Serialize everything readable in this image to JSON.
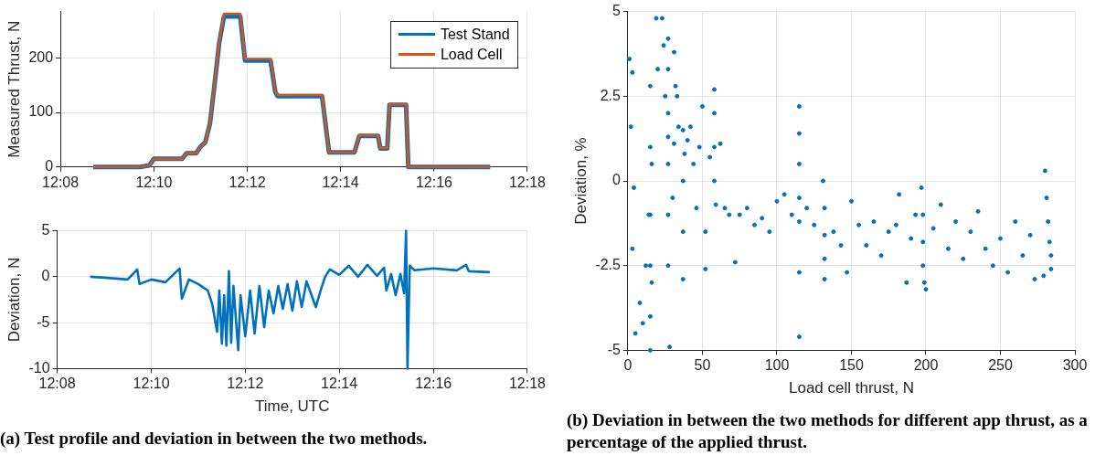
{
  "chart_data": [
    {
      "type": "line",
      "ylabel": "Measured Thrust, N",
      "legend": "top right",
      "grid": true,
      "xlim": [
        12.1333,
        12.3
      ],
      "xticks": [
        {
          "value": 12.1333,
          "label": "12:08"
        },
        {
          "value": 12.1667,
          "label": "12:10"
        },
        {
          "value": 12.2,
          "label": "12:12"
        },
        {
          "value": 12.2333,
          "label": "12:14"
        },
        {
          "value": 12.2667,
          "label": "12:16"
        },
        {
          "value": 12.3,
          "label": "12:18"
        }
      ],
      "ylim": [
        0,
        285
      ],
      "yticks": [
        0,
        100,
        200
      ],
      "x": [
        12.145,
        12.1617,
        12.165,
        12.1667,
        12.1767,
        12.1783,
        12.1817,
        12.1833,
        12.185,
        12.1867,
        12.1883,
        12.19,
        12.1917,
        12.1975,
        12.1992,
        12.2083,
        12.21,
        12.2108,
        12.2267,
        12.2292,
        12.2383,
        12.24,
        12.2467,
        12.2475,
        12.25,
        12.2508,
        12.2567,
        12.2575,
        12.2867
      ],
      "series": [
        {
          "name": "Test Stand",
          "color": "#0072bd",
          "values": [
            0,
            0,
            3,
            15,
            15,
            25,
            25,
            37,
            45,
            80,
            150,
            228,
            276,
            276,
            195,
            195,
            138,
            130,
            130,
            27,
            27,
            57,
            57,
            34,
            34,
            114,
            114,
            0,
            0
          ]
        },
        {
          "name": "Load Cell",
          "color": "#d95319",
          "values": [
            0,
            0,
            3,
            15,
            15,
            25,
            25,
            37,
            45,
            80,
            150,
            230,
            281,
            281,
            198,
            198,
            140,
            132,
            132,
            27,
            27,
            58,
            58,
            35,
            35,
            115,
            115,
            0,
            0
          ]
        }
      ]
    },
    {
      "type": "line",
      "xlabel": "Time, UTC",
      "ylabel": "Deviation, N",
      "grid": true,
      "xlim": [
        12.1333,
        12.3
      ],
      "xticks": [
        {
          "value": 12.1333,
          "label": "12:08"
        },
        {
          "value": 12.1667,
          "label": "12:10"
        },
        {
          "value": 12.2,
          "label": "12:12"
        },
        {
          "value": 12.2333,
          "label": "12:14"
        },
        {
          "value": 12.2667,
          "label": "12:16"
        },
        {
          "value": 12.3,
          "label": "12:18"
        }
      ],
      "ylim": [
        -10,
        5
      ],
      "yticks": [
        -10,
        -5,
        0,
        5
      ],
      "x": [
        12.145,
        12.15,
        12.1583,
        12.1617,
        12.1625,
        12.1667,
        12.1717,
        12.1767,
        12.1775,
        12.18,
        12.1833,
        12.1867,
        12.1883,
        12.19,
        12.1908,
        12.1917,
        12.1925,
        12.1933,
        12.1942,
        12.195,
        12.1958,
        12.1975,
        12.1983,
        12.2,
        12.2017,
        12.2033,
        12.205,
        12.2067,
        12.2083,
        12.21,
        12.2117,
        12.2133,
        12.215,
        12.2167,
        12.2183,
        12.22,
        12.2217,
        12.225,
        12.2267,
        12.2283,
        12.23,
        12.2333,
        12.2367,
        12.24,
        12.2433,
        12.2467,
        12.2492,
        12.25,
        12.2517,
        12.2533,
        12.255,
        12.2563,
        12.257,
        12.2575,
        12.2583,
        12.26,
        12.2667,
        12.275,
        12.2783,
        12.2792,
        12.2867
      ],
      "series": [
        {
          "color": "#0072bd",
          "values": [
            0,
            -0.1,
            -0.3,
            0.8,
            -0.8,
            -0.3,
            -0.6,
            0.9,
            -2.4,
            -0.3,
            -0.8,
            -1.5,
            -3,
            -6,
            -1.5,
            -7.3,
            -2,
            -7.5,
            0.6,
            -7.2,
            -1,
            -8,
            -2,
            -6.5,
            -1.5,
            -6.2,
            -1,
            -5.5,
            -1.5,
            -4,
            -1,
            -3.5,
            -0.8,
            -3.7,
            -0.5,
            -3.3,
            -0.5,
            -3.3,
            -1.5,
            0,
            0.8,
            0.2,
            1.2,
            0,
            1.3,
            0.1,
            1,
            -1.5,
            0.3,
            -2,
            0.3,
            -1.8,
            5,
            -10,
            1.2,
            0.7,
            0.9,
            0.7,
            1.3,
            0.6,
            0.5
          ]
        }
      ],
      "annotations": [
        "(a) Test profile and deviation in between the two methods."
      ]
    },
    {
      "type": "scatter",
      "xlabel": "Load cell thrust, N",
      "ylabel": "Deviation, %",
      "grid": true,
      "marker": "circle",
      "xlim": [
        0,
        300
      ],
      "xticks": [
        0,
        50,
        100,
        150,
        200,
        250,
        300
      ],
      "ylim": [
        -5,
        5
      ],
      "yticks": [
        -5,
        -2.5,
        0,
        2.5,
        5
      ],
      "series": [
        {
          "color": "#0072bd",
          "x": [
            1,
            2,
            3,
            4,
            3,
            5,
            8,
            10,
            12,
            14,
            15,
            15,
            15,
            15,
            15,
            15,
            16,
            16,
            19,
            20,
            23,
            24,
            25,
            27,
            27,
            27,
            27,
            27,
            27,
            28,
            27,
            31,
            32,
            31,
            30,
            33,
            34,
            37,
            37,
            37,
            37,
            38,
            40,
            42,
            44,
            46,
            48,
            50,
            52,
            52,
            55,
            58,
            58,
            58,
            58,
            59,
            62,
            65,
            68,
            72,
            75,
            80,
            85,
            90,
            95,
            100,
            105,
            110,
            115,
            115,
            115,
            115,
            115,
            115,
            115,
            120,
            125,
            131,
            132,
            132,
            132,
            132,
            138,
            143,
            147,
            150,
            155,
            160,
            165,
            170,
            175,
            180,
            182,
            187,
            190,
            193,
            197,
            198,
            198,
            198,
            199,
            200,
            205,
            210,
            215,
            220,
            225,
            230,
            235,
            240,
            245,
            250,
            255,
            260,
            265,
            270,
            273,
            280,
            281,
            282,
            283,
            284,
            284,
            279
          ],
          "values": [
            3.6,
            1.6,
            3.2,
            -0.2,
            -2,
            -4.5,
            -3.6,
            -4.2,
            -2.5,
            -1,
            2.8,
            1,
            -1,
            -2.5,
            -4,
            -5,
            0.5,
            -3,
            4.8,
            3.3,
            4.8,
            4,
            2.5,
            4.2,
            3.3,
            2,
            0.5,
            -1,
            -2.5,
            -4.9,
            1.3,
            3.8,
            2.8,
            1.1,
            -0.5,
            2.5,
            1.6,
            1.5,
            0,
            -1.5,
            -2.9,
            0.8,
            1.2,
            1.6,
            0.5,
            -0.8,
            1,
            2.2,
            -1.5,
            -2.6,
            0.7,
            2.7,
            2,
            1,
            0,
            -0.7,
            1.1,
            -0.8,
            -1,
            -2.4,
            -1,
            -0.8,
            -1.3,
            -1.1,
            -1.5,
            -0.6,
            -0.4,
            -1,
            2.2,
            1.4,
            0.5,
            -0.5,
            -1.2,
            -2.7,
            -4.6,
            -0.8,
            -1.3,
            0,
            -0.8,
            -1.6,
            -2.3,
            -2.9,
            -1.5,
            -1.9,
            -2.7,
            -0.6,
            -1.3,
            -1.9,
            -1.2,
            -2.2,
            -1.5,
            -1.3,
            -0.4,
            -3,
            -1.7,
            -1,
            -0.2,
            -1,
            -1.8,
            -2.5,
            -3,
            -3.2,
            -1.4,
            -0.7,
            -2,
            -1.2,
            -2.3,
            -1.5,
            -0.9,
            -2,
            -2.5,
            -1.7,
            -2.7,
            -1.2,
            -2.2,
            -1.6,
            -2.9,
            0.3,
            -0.5,
            -1.2,
            -1.8,
            -2.2,
            -2.6,
            -2.8
          ]
        }
      ],
      "annotations": [
        "(b) Deviation in between the two methods for different app thrust, as a percentage of the applied thrust."
      ]
    }
  ]
}
